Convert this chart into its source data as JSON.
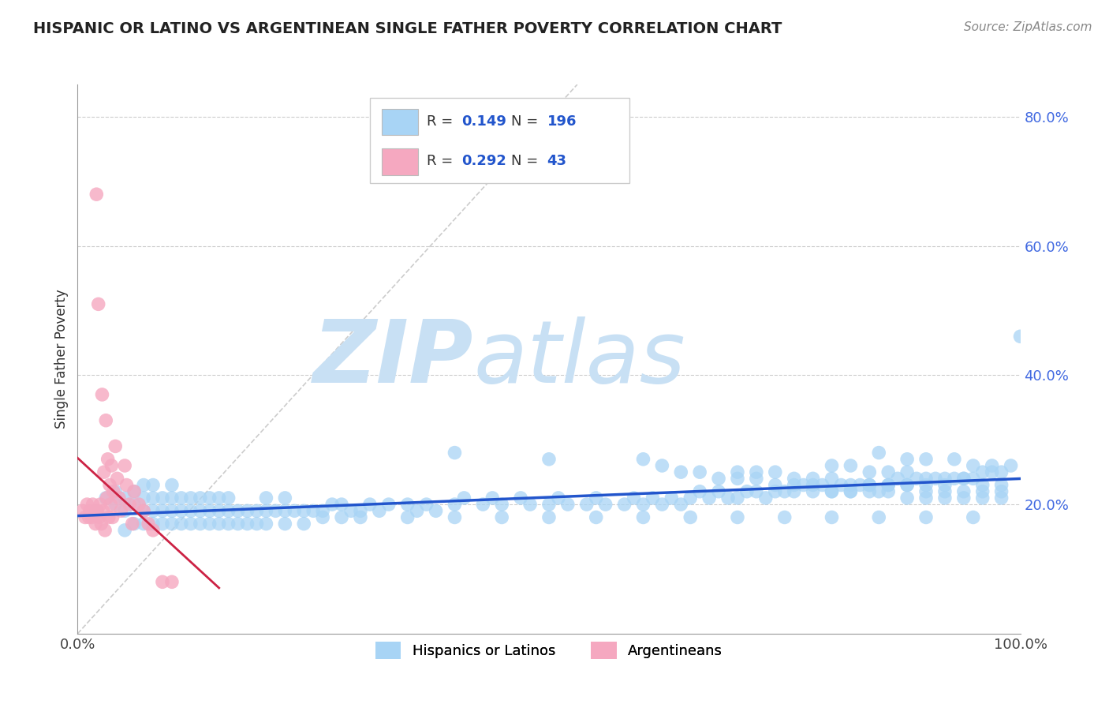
{
  "title": "HISPANIC OR LATINO VS ARGENTINEAN SINGLE FATHER POVERTY CORRELATION CHART",
  "source_text": "Source: ZipAtlas.com",
  "ylabel": "Single Father Poverty",
  "blue_R": 0.149,
  "blue_N": 196,
  "pink_R": 0.292,
  "pink_N": 43,
  "blue_color": "#A8D4F5",
  "pink_color": "#F5A8C0",
  "blue_line_color": "#2255CC",
  "pink_line_color": "#CC2244",
  "ref_line_color": "#CCCCCC",
  "watermark_zip": "ZIP",
  "watermark_atlas": "atlas",
  "watermark_color": "#C8E0F4",
  "legend_label_blue": "Hispanics or Latinos",
  "legend_label_pink": "Argentineans",
  "title_fontsize": 14,
  "ylim": [
    0.0,
    0.85
  ],
  "xlim": [
    0.0,
    1.0
  ],
  "yticks": [
    0.2,
    0.4,
    0.6,
    0.8
  ],
  "ytick_labels": [
    "20.0%",
    "40.0%",
    "60.0%",
    "80.0%"
  ],
  "blue_x": [
    0.02,
    0.03,
    0.04,
    0.04,
    0.05,
    0.05,
    0.06,
    0.06,
    0.07,
    0.07,
    0.07,
    0.08,
    0.08,
    0.08,
    0.09,
    0.09,
    0.1,
    0.1,
    0.1,
    0.11,
    0.11,
    0.12,
    0.12,
    0.13,
    0.13,
    0.14,
    0.14,
    0.15,
    0.15,
    0.16,
    0.16,
    0.17,
    0.18,
    0.19,
    0.2,
    0.2,
    0.21,
    0.22,
    0.22,
    0.23,
    0.24,
    0.25,
    0.26,
    0.27,
    0.28,
    0.29,
    0.3,
    0.31,
    0.32,
    0.33,
    0.35,
    0.36,
    0.37,
    0.38,
    0.4,
    0.41,
    0.43,
    0.44,
    0.45,
    0.47,
    0.48,
    0.5,
    0.51,
    0.52,
    0.54,
    0.55,
    0.56,
    0.58,
    0.59,
    0.6,
    0.61,
    0.62,
    0.63,
    0.64,
    0.65,
    0.66,
    0.67,
    0.68,
    0.69,
    0.7,
    0.71,
    0.72,
    0.73,
    0.74,
    0.75,
    0.76,
    0.77,
    0.78,
    0.79,
    0.8,
    0.81,
    0.82,
    0.83,
    0.84,
    0.85,
    0.86,
    0.87,
    0.88,
    0.89,
    0.9,
    0.91,
    0.92,
    0.93,
    0.94,
    0.95,
    0.96,
    0.97,
    0.98,
    0.99,
    0.05,
    0.06,
    0.07,
    0.08,
    0.09,
    0.1,
    0.11,
    0.12,
    0.13,
    0.14,
    0.15,
    0.16,
    0.17,
    0.18,
    0.19,
    0.2,
    0.22,
    0.24,
    0.26,
    0.28,
    0.3,
    0.35,
    0.4,
    0.45,
    0.5,
    0.55,
    0.6,
    0.65,
    0.7,
    0.75,
    0.8,
    0.85,
    0.9,
    0.95,
    0.62,
    0.64,
    0.66,
    0.68,
    0.7,
    0.72,
    0.74,
    0.76,
    0.78,
    0.8,
    0.82,
    0.84,
    0.86,
    0.88,
    0.9,
    0.92,
    0.94,
    0.96,
    0.98,
    0.7,
    0.72,
    0.74,
    0.76,
    0.78,
    0.8,
    0.82,
    0.84,
    0.86,
    0.88,
    0.9,
    0.92,
    0.94,
    0.96,
    0.98,
    1.0,
    0.8,
    0.82,
    0.84,
    0.86,
    0.88,
    0.9,
    0.92,
    0.94,
    0.96,
    0.98,
    0.85,
    0.88,
    0.9,
    0.93,
    0.95,
    0.97,
    0.4,
    0.5,
    0.6
  ],
  "blue_y": [
    0.19,
    0.21,
    0.2,
    0.22,
    0.19,
    0.21,
    0.2,
    0.22,
    0.19,
    0.21,
    0.23,
    0.19,
    0.21,
    0.23,
    0.19,
    0.21,
    0.19,
    0.21,
    0.23,
    0.19,
    0.21,
    0.19,
    0.21,
    0.19,
    0.21,
    0.19,
    0.21,
    0.19,
    0.21,
    0.19,
    0.21,
    0.19,
    0.19,
    0.19,
    0.19,
    0.21,
    0.19,
    0.19,
    0.21,
    0.19,
    0.19,
    0.19,
    0.19,
    0.2,
    0.2,
    0.19,
    0.19,
    0.2,
    0.19,
    0.2,
    0.2,
    0.19,
    0.2,
    0.19,
    0.2,
    0.21,
    0.2,
    0.21,
    0.2,
    0.21,
    0.2,
    0.2,
    0.21,
    0.2,
    0.2,
    0.21,
    0.2,
    0.2,
    0.21,
    0.2,
    0.21,
    0.2,
    0.21,
    0.2,
    0.21,
    0.22,
    0.21,
    0.22,
    0.21,
    0.21,
    0.22,
    0.22,
    0.21,
    0.22,
    0.22,
    0.22,
    0.23,
    0.22,
    0.23,
    0.22,
    0.23,
    0.22,
    0.23,
    0.23,
    0.22,
    0.23,
    0.24,
    0.23,
    0.24,
    0.23,
    0.24,
    0.23,
    0.24,
    0.24,
    0.24,
    0.25,
    0.25,
    0.25,
    0.26,
    0.16,
    0.17,
    0.17,
    0.17,
    0.17,
    0.17,
    0.17,
    0.17,
    0.17,
    0.17,
    0.17,
    0.17,
    0.17,
    0.17,
    0.17,
    0.17,
    0.17,
    0.17,
    0.18,
    0.18,
    0.18,
    0.18,
    0.18,
    0.18,
    0.18,
    0.18,
    0.18,
    0.18,
    0.18,
    0.18,
    0.18,
    0.18,
    0.18,
    0.18,
    0.26,
    0.25,
    0.25,
    0.24,
    0.24,
    0.24,
    0.23,
    0.23,
    0.23,
    0.22,
    0.22,
    0.22,
    0.22,
    0.21,
    0.21,
    0.21,
    0.21,
    0.21,
    0.21,
    0.25,
    0.25,
    0.25,
    0.24,
    0.24,
    0.24,
    0.23,
    0.23,
    0.23,
    0.23,
    0.22,
    0.22,
    0.22,
    0.22,
    0.22,
    0.46,
    0.26,
    0.26,
    0.25,
    0.25,
    0.25,
    0.24,
    0.24,
    0.24,
    0.23,
    0.23,
    0.28,
    0.27,
    0.27,
    0.27,
    0.26,
    0.26,
    0.28,
    0.27,
    0.27
  ],
  "pink_x": [
    0.005,
    0.008,
    0.01,
    0.012,
    0.013,
    0.015,
    0.016,
    0.018,
    0.019,
    0.02,
    0.021,
    0.022,
    0.023,
    0.024,
    0.025,
    0.026,
    0.027,
    0.028,
    0.029,
    0.03,
    0.031,
    0.032,
    0.033,
    0.034,
    0.035,
    0.036,
    0.037,
    0.038,
    0.04,
    0.042,
    0.044,
    0.046,
    0.05,
    0.052,
    0.055,
    0.058,
    0.06,
    0.065,
    0.07,
    0.075,
    0.08,
    0.09,
    0.1
  ],
  "pink_y": [
    0.19,
    0.18,
    0.2,
    0.18,
    0.19,
    0.18,
    0.2,
    0.19,
    0.17,
    0.68,
    0.19,
    0.51,
    0.18,
    0.2,
    0.17,
    0.37,
    0.19,
    0.25,
    0.16,
    0.33,
    0.21,
    0.27,
    0.18,
    0.23,
    0.2,
    0.26,
    0.18,
    0.22,
    0.29,
    0.24,
    0.21,
    0.19,
    0.26,
    0.23,
    0.2,
    0.17,
    0.22,
    0.2,
    0.19,
    0.17,
    0.16,
    0.08,
    0.08
  ]
}
